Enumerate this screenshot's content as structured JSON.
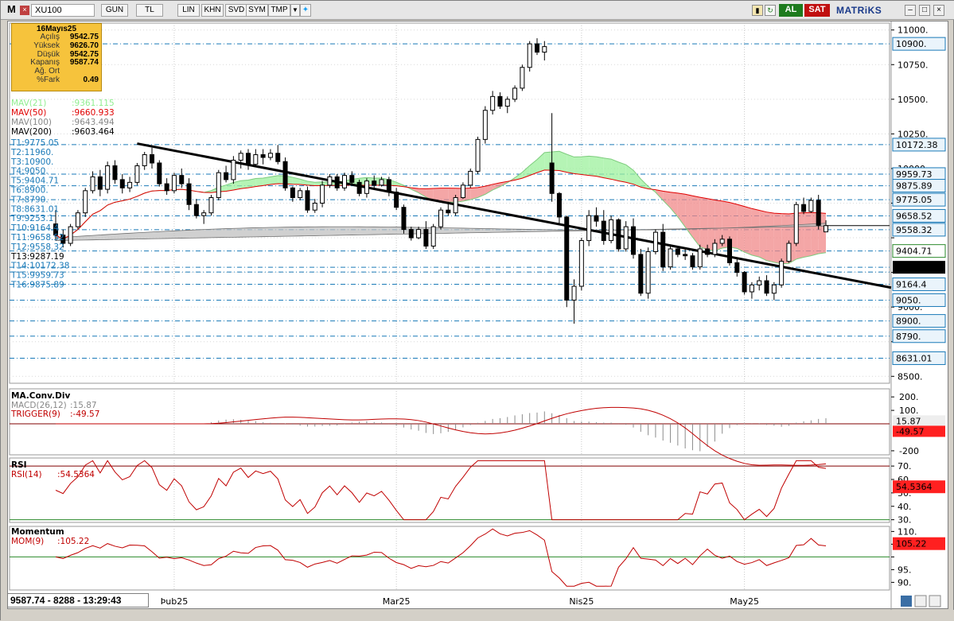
{
  "toolbar": {
    "logo": "M",
    "symbol": "XU100",
    "buttons": [
      "GUN",
      "TL",
      "LIN",
      "KHN",
      "SVD",
      "SYM",
      "TMP"
    ],
    "buy_label": "AL",
    "sell_label": "SAT",
    "brand": "MATRiKS",
    "icons": [
      "arrow-down-icon",
      "twitter-icon",
      "color-icon",
      "refresh-icon",
      "green-icon",
      "window-controls"
    ]
  },
  "info_box": {
    "date": "16Mayıs25",
    "rows": [
      {
        "k": "Açılış",
        "v": "9542.75"
      },
      {
        "k": "Yüksek",
        "v": "9626.70"
      },
      {
        "k": "Düşük",
        "v": "9542.75"
      },
      {
        "k": "Kapanış",
        "v": "9587.74"
      },
      {
        "k": "Ağ. Ort",
        "v": ""
      },
      {
        "k": "%Fark",
        "v": "0.49"
      }
    ]
  },
  "status": "9587.74 - 8288 - 13:29:43",
  "colors": {
    "mav21": "#90ee90",
    "mav50": "#e00000",
    "mav100": "#808080",
    "mav200": "#000000",
    "t_lines": "#1a7ab8",
    "pos_fill": "#9cf09c",
    "neg_fill": "#f08888",
    "band_fill": "#c0c0c0"
  },
  "chart_data": [
    {
      "type": "candlestick",
      "panel": "price",
      "x_labels": [
        "Þub25",
        "Mar25",
        "Nis25",
        "May25"
      ],
      "y_ticks": [
        8500,
        8750,
        9000,
        9250,
        9500,
        9750,
        10000,
        10250,
        10500,
        10750,
        11000
      ],
      "y_tick_labels": [
        "8500.",
        "",
        "9000.",
        "",
        "",
        "",
        "10000.",
        "10250.",
        "10500.",
        "10750.",
        "11000."
      ],
      "ylim": [
        8450,
        11050
      ],
      "legend": [
        {
          "name": "MAV(21)",
          "value": ":9361.115"
        },
        {
          "name": "MAV(50)",
          "value": ":9660.933"
        },
        {
          "name": "MAV(100)",
          "value": ":9643.494"
        },
        {
          "name": "MAV(200)",
          "value": ":9603.464"
        }
      ],
      "levels": [
        {
          "label": "T1:9775.05",
          "value": 9775.05
        },
        {
          "label": "T2:11960.",
          "value": 11960
        },
        {
          "label": "T3:10900.",
          "value": 10900
        },
        {
          "label": "T4:9050.",
          "value": 9050
        },
        {
          "label": "T5:9404.71",
          "value": 9404.71
        },
        {
          "label": "T6:8900.",
          "value": 8900
        },
        {
          "label": "T7:8790.",
          "value": 8790
        },
        {
          "label": "T8:8631.01",
          "value": 8631.01
        },
        {
          "label": "T9:9253.1",
          "value": 9253.1
        },
        {
          "label": "T10:9164.4",
          "value": 9164.4
        },
        {
          "label": "T11:9658.52",
          "value": 9658.52
        },
        {
          "label": "T12:9558.32",
          "value": 9558.32
        },
        {
          "label": "T13:9287.19",
          "value": 9287.19
        },
        {
          "label": "T14:10172.38",
          "value": 10172.38
        },
        {
          "label": "T15:9959.73",
          "value": 9959.73
        },
        {
          "label": "T16:9875.89",
          "value": 9875.89
        }
      ],
      "right_badges": [
        "10900.",
        "10172.38",
        "9959.73",
        "9875.89",
        "9775.05",
        "9658.52",
        "9558.32",
        "9404.71",
        "9287.19",
        "9164.4",
        "9050.",
        "8900.",
        "8790.",
        "8631.01"
      ],
      "candles": [
        [
          9600,
          9700,
          9480,
          9520
        ],
        [
          9520,
          9560,
          9430,
          9460
        ],
        [
          9460,
          9600,
          9440,
          9580
        ],
        [
          9580,
          9700,
          9560,
          9680
        ],
        [
          9680,
          9860,
          9650,
          9840
        ],
        [
          9840,
          9980,
          9820,
          9940
        ],
        [
          9940,
          9990,
          9800,
          9850
        ],
        [
          9850,
          10050,
          9820,
          10020
        ],
        [
          10020,
          10060,
          9890,
          9920
        ],
        [
          9920,
          9960,
          9820,
          9860
        ],
        [
          9860,
          9940,
          9830,
          9900
        ],
        [
          9900,
          10040,
          9880,
          10020
        ],
        [
          10020,
          10120,
          9990,
          10100
        ],
        [
          10100,
          10150,
          10000,
          10040
        ],
        [
          10040,
          10060,
          9870,
          9890
        ],
        [
          9890,
          9930,
          9810,
          9840
        ],
        [
          9840,
          9970,
          9820,
          9950
        ],
        [
          9950,
          10000,
          9860,
          9890
        ],
        [
          9890,
          9930,
          9700,
          9740
        ],
        [
          9740,
          9780,
          9640,
          9660
        ],
        [
          9660,
          9700,
          9600,
          9680
        ],
        [
          9680,
          9810,
          9660,
          9790
        ],
        [
          9790,
          9990,
          9770,
          9970
        ],
        [
          9970,
          10020,
          9900,
          9920
        ],
        [
          9920,
          10090,
          9890,
          10060
        ],
        [
          10060,
          10130,
          10000,
          10110
        ],
        [
          10110,
          10140,
          9990,
          10030
        ],
        [
          10030,
          10140,
          10010,
          10100
        ],
        [
          10100,
          10140,
          10030,
          10080
        ],
        [
          10080,
          10140,
          10060,
          10110
        ],
        [
          10110,
          10170,
          10030,
          10050
        ],
        [
          10050,
          10080,
          9840,
          9860
        ],
        [
          9860,
          9870,
          9760,
          9790
        ],
        [
          9790,
          9860,
          9770,
          9840
        ],
        [
          9840,
          9870,
          9680,
          9700
        ],
        [
          9700,
          9780,
          9680,
          9750
        ],
        [
          9750,
          9910,
          9720,
          9880
        ],
        [
          9880,
          9960,
          9860,
          9940
        ],
        [
          9940,
          9960,
          9840,
          9860
        ],
        [
          9860,
          9970,
          9840,
          9950
        ],
        [
          9950,
          9980,
          9880,
          9900
        ],
        [
          9900,
          9920,
          9800,
          9820
        ],
        [
          9820,
          9930,
          9790,
          9910
        ],
        [
          9910,
          9950,
          9860,
          9880
        ],
        [
          9880,
          9940,
          9870,
          9920
        ],
        [
          9920,
          9940,
          9800,
          9830
        ],
        [
          9830,
          9860,
          9700,
          9720
        ],
        [
          9720,
          9740,
          9530,
          9560
        ],
        [
          9560,
          9580,
          9480,
          9500
        ],
        [
          9500,
          9580,
          9490,
          9560
        ],
        [
          9560,
          9620,
          9420,
          9440
        ],
        [
          9440,
          9600,
          9420,
          9580
        ],
        [
          9580,
          9720,
          9560,
          9700
        ],
        [
          9700,
          9760,
          9660,
          9680
        ],
        [
          9680,
          9810,
          9660,
          9790
        ],
        [
          9790,
          9900,
          9780,
          9880
        ],
        [
          9880,
          10000,
          9860,
          9980
        ],
        [
          9980,
          10230,
          9960,
          10210
        ],
        [
          10210,
          10450,
          10180,
          10420
        ],
        [
          10420,
          10560,
          10390,
          10520
        ],
        [
          10520,
          10550,
          10430,
          10450
        ],
        [
          10450,
          10520,
          10400,
          10500
        ],
        [
          10500,
          10600,
          10480,
          10580
        ],
        [
          10580,
          10750,
          10560,
          10730
        ],
        [
          10730,
          10920,
          10700,
          10900
        ],
        [
          10900,
          10940,
          10820,
          10840
        ],
        [
          10840,
          10920,
          10780,
          10880
        ],
        [
          10040,
          10400,
          9760,
          9820
        ],
        [
          9820,
          9830,
          9600,
          9650
        ],
        [
          9650,
          9660,
          9000,
          9050
        ],
        [
          9050,
          9200,
          8880,
          9150
        ],
        [
          9150,
          9500,
          9120,
          9480
        ],
        [
          9480,
          9700,
          9440,
          9660
        ],
        [
          9660,
          9720,
          9580,
          9620
        ],
        [
          9620,
          9700,
          9450,
          9480
        ],
        [
          9480,
          9660,
          9460,
          9630
        ],
        [
          9630,
          9640,
          9400,
          9420
        ],
        [
          9420,
          9620,
          9400,
          9580
        ],
        [
          9580,
          9640,
          9350,
          9380
        ],
        [
          9380,
          9420,
          9080,
          9100
        ],
        [
          9100,
          9430,
          9060,
          9400
        ],
        [
          9400,
          9560,
          9380,
          9540
        ],
        [
          9540,
          9600,
          9260,
          9290
        ],
        [
          9290,
          9450,
          9270,
          9420
        ],
        [
          9420,
          9440,
          9360,
          9380
        ],
        [
          9380,
          9430,
          9340,
          9370
        ],
        [
          9370,
          9390,
          9270,
          9290
        ],
        [
          9290,
          9450,
          9270,
          9420
        ],
        [
          9420,
          9450,
          9360,
          9380
        ],
        [
          9380,
          9490,
          9360,
          9460
        ],
        [
          9460,
          9520,
          9440,
          9490
        ],
        [
          9490,
          9510,
          9300,
          9320
        ],
        [
          9320,
          9350,
          9220,
          9250
        ],
        [
          9250,
          9260,
          9090,
          9110
        ],
        [
          9110,
          9180,
          9060,
          9160
        ],
        [
          9160,
          9220,
          9120,
          9190
        ],
        [
          9190,
          9230,
          9080,
          9100
        ],
        [
          9100,
          9180,
          9050,
          9160
        ],
        [
          9160,
          9350,
          9140,
          9330
        ],
        [
          9330,
          9480,
          9320,
          9460
        ],
        [
          9460,
          9760,
          9440,
          9740
        ],
        [
          9740,
          9790,
          9670,
          9690
        ],
        [
          9690,
          9790,
          9680,
          9770
        ],
        [
          9770,
          9810,
          9560,
          9590
        ],
        [
          9542.75,
          9626.7,
          9542.75,
          9587.74
        ]
      ]
    },
    {
      "type": "line",
      "panel": "macd",
      "title": "MA.Conv.Div",
      "legend": [
        {
          "name": "MACD(26,12)",
          "value": ":15.87"
        },
        {
          "name": "TRIGGER(9)",
          "value": ":-49.57"
        }
      ],
      "y_ticks": [
        -200,
        100,
        200
      ],
      "y_tick_labels": [
        "-200",
        "100.",
        "200."
      ],
      "ylim": [
        -230,
        260
      ],
      "badges": [
        "15.87",
        "-49.57"
      ]
    },
    {
      "type": "line",
      "panel": "rsi",
      "title": "RSI",
      "legend": [
        {
          "name": "RSI(14)",
          "value": ":54.5364"
        }
      ],
      "y_ticks": [
        30,
        40,
        50,
        60,
        70
      ],
      "y_tick_labels": [
        "30.",
        "40.",
        "50.",
        "60.",
        "70."
      ],
      "ylim": [
        28,
        76
      ],
      "badges": [
        "54.5364"
      ]
    },
    {
      "type": "line",
      "panel": "momentum",
      "title": "Momentum",
      "legend": [
        {
          "name": "MOM(9)",
          "value": ":105.22"
        }
      ],
      "y_ticks": [
        90,
        95,
        100,
        105,
        110
      ],
      "y_tick_labels": [
        "90.",
        "95.",
        "",
        "",
        "110."
      ],
      "ylim": [
        87,
        112
      ],
      "badges": [
        "105.22"
      ]
    }
  ]
}
